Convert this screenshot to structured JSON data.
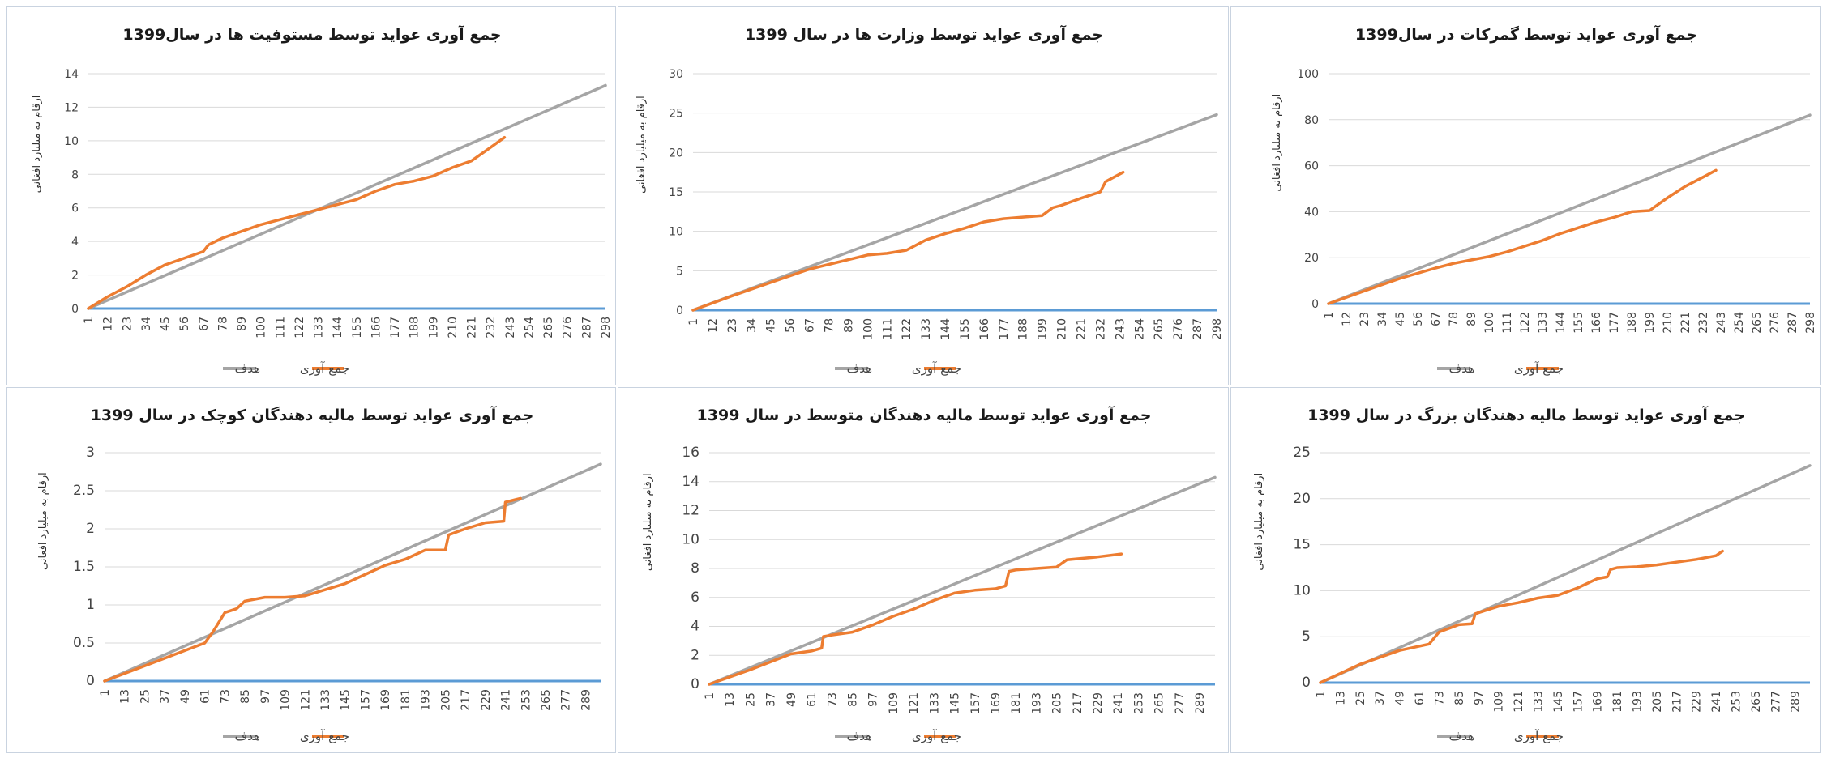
{
  "colors": {
    "target": "#a5a5a5",
    "actual": "#ed7d31",
    "baseline": "#5b9bd5",
    "grid": "#d9d9d9",
    "border": "#c9d3e0"
  },
  "legend": {
    "target_label": "هدف",
    "actual_label": "جمع آوری"
  },
  "chart_data": [
    {
      "type": "line",
      "title": "جمع آوری عواید توسط مستوفیت ها در سال1399",
      "ylabel": "ارقام به میلیارد افغانی",
      "ylim": [
        0,
        14
      ],
      "yticks": [
        "0",
        "2",
        "4",
        "6",
        "8",
        "10",
        "12",
        "14"
      ],
      "ytick_values": [
        0,
        2,
        4,
        6,
        8,
        10,
        12,
        14
      ],
      "xticks": [
        "1",
        "12",
        "23",
        "34",
        "45",
        "56",
        "67",
        "78",
        "89",
        "100",
        "111",
        "122",
        "133",
        "144",
        "155",
        "166",
        "177",
        "188",
        "199",
        "210",
        "221",
        "232",
        "243",
        "254",
        "265",
        "276",
        "287",
        "298"
      ],
      "x_range": [
        1,
        298
      ],
      "series": [
        {
          "name": "هدف",
          "x": [
            1,
            298
          ],
          "y": [
            0,
            13.3
          ]
        },
        {
          "name": "جمع آوری",
          "x": [
            1,
            12,
            23,
            34,
            45,
            56,
            67,
            70,
            78,
            89,
            100,
            111,
            122,
            133,
            144,
            155,
            166,
            177,
            188,
            199,
            210,
            221,
            232,
            240
          ],
          "y": [
            0,
            0.7,
            1.3,
            2.0,
            2.6,
            3.0,
            3.4,
            3.8,
            4.2,
            4.6,
            5.0,
            5.3,
            5.6,
            5.9,
            6.2,
            6.5,
            7.0,
            7.4,
            7.6,
            7.9,
            8.4,
            8.8,
            9.6,
            10.2
          ]
        }
      ]
    },
    {
      "type": "line",
      "title": "جمع آوری عواید توسط وزارت ها در سال 1399",
      "ylabel": "ارقام به میلیارد افغانی",
      "ylim": [
        0,
        30
      ],
      "yticks": [
        "0",
        "5",
        "10",
        "15",
        "20",
        "25",
        "30"
      ],
      "ytick_values": [
        0,
        5,
        10,
        15,
        20,
        25,
        30
      ],
      "xticks": [
        "1",
        "12",
        "23",
        "34",
        "45",
        "56",
        "67",
        "78",
        "89",
        "100",
        "111",
        "122",
        "133",
        "144",
        "155",
        "166",
        "177",
        "188",
        "199",
        "210",
        "221",
        "232",
        "243",
        "254",
        "265",
        "276",
        "287",
        "298"
      ],
      "x_range": [
        1,
        298
      ],
      "series": [
        {
          "name": "هدف",
          "x": [
            1,
            298
          ],
          "y": [
            0,
            24.8
          ]
        },
        {
          "name": "جمع آوری",
          "x": [
            1,
            23,
            45,
            67,
            78,
            89,
            100,
            111,
            122,
            133,
            144,
            155,
            166,
            177,
            188,
            199,
            205,
            210,
            221,
            232,
            235,
            245
          ],
          "y": [
            0,
            1.8,
            3.5,
            5.2,
            5.8,
            6.4,
            7.0,
            7.2,
            7.6,
            8.9,
            9.7,
            10.4,
            11.2,
            11.6,
            11.8,
            12.0,
            13.0,
            13.3,
            14.2,
            15.0,
            16.3,
            17.5
          ]
        }
      ]
    },
    {
      "type": "line",
      "title": "جمع آوری عواید توسط گمرکات در سال1399",
      "ylabel": "ارقام به میلیارد افغانی",
      "ylim": [
        0,
        100
      ],
      "yticks": [
        "0",
        "20",
        "40",
        "60",
        "80",
        "100"
      ],
      "ytick_values": [
        0,
        20,
        40,
        60,
        80,
        100
      ],
      "xticks": [
        "1",
        "12",
        "23",
        "34",
        "45",
        "56",
        "67",
        "78",
        "89",
        "100",
        "111",
        "122",
        "133",
        "144",
        "155",
        "166",
        "177",
        "188",
        "199",
        "210",
        "221",
        "232",
        "243",
        "254",
        "265",
        "276",
        "287",
        "298"
      ],
      "x_range": [
        1,
        298
      ],
      "series": [
        {
          "name": "هدف",
          "x": [
            1,
            298
          ],
          "y": [
            0,
            82
          ]
        },
        {
          "name": "جمع آوری",
          "x": [
            1,
            23,
            45,
            67,
            78,
            89,
            100,
            111,
            122,
            133,
            144,
            155,
            166,
            177,
            188,
            199,
            210,
            221,
            232,
            240
          ],
          "y": [
            0,
            5.5,
            11.0,
            15.5,
            17.5,
            19.0,
            20.5,
            22.5,
            25.0,
            27.5,
            30.5,
            33.0,
            35.5,
            37.5,
            40.0,
            40.5,
            46.0,
            51.0,
            55.0,
            58.0
          ]
        }
      ]
    },
    {
      "type": "line",
      "title": "جمع آوری عواید توسط مالیه دهندگان کوچک در سال 1399",
      "ylabel": "ارقام به میلیارد افغانی",
      "ylim": [
        0,
        3
      ],
      "yticks": [
        "0",
        "0.5",
        "1",
        "1.5",
        "2",
        "2.5",
        "3"
      ],
      "ytick_values": [
        0,
        0.5,
        1,
        1.5,
        2,
        2.5,
        3
      ],
      "xticks": [
        "1",
        "13",
        "25",
        "37",
        "49",
        "61",
        "73",
        "85",
        "97",
        "109",
        "121",
        "133",
        "145",
        "157",
        "169",
        "181",
        "193",
        "205",
        "217",
        "229",
        "241",
        "253",
        "265",
        "277",
        "289"
      ],
      "x_range": [
        1,
        298
      ],
      "series": [
        {
          "name": "هدف",
          "x": [
            1,
            298
          ],
          "y": [
            0,
            2.85
          ]
        },
        {
          "name": "جمع آوری",
          "x": [
            1,
            25,
            49,
            61,
            66,
            73,
            80,
            85,
            97,
            109,
            121,
            133,
            145,
            157,
            169,
            181,
            193,
            205,
            207,
            217,
            229,
            240,
            241,
            250
          ],
          "y": [
            0,
            0.2,
            0.4,
            0.5,
            0.65,
            0.9,
            0.95,
            1.05,
            1.1,
            1.1,
            1.12,
            1.2,
            1.28,
            1.4,
            1.52,
            1.6,
            1.72,
            1.72,
            1.92,
            2.0,
            2.08,
            2.1,
            2.35,
            2.4
          ]
        }
      ]
    },
    {
      "type": "line",
      "title": "جمع آوری عواید توسط مالیه دهندگان متوسط در سال 1399",
      "ylabel": "ارقام به میلیارد افغانی",
      "ylim": [
        0,
        16
      ],
      "yticks": [
        "0",
        "2",
        "4",
        "6",
        "8",
        "10",
        "12",
        "14",
        "16"
      ],
      "ytick_values": [
        0,
        2,
        4,
        6,
        8,
        10,
        12,
        14,
        16
      ],
      "xticks": [
        "1",
        "13",
        "25",
        "37",
        "49",
        "61",
        "73",
        "85",
        "97",
        "109",
        "121",
        "133",
        "145",
        "157",
        "169",
        "181",
        "193",
        "205",
        "217",
        "229",
        "241",
        "253",
        "265",
        "277",
        "289"
      ],
      "x_range": [
        1,
        298
      ],
      "series": [
        {
          "name": "هدف",
          "x": [
            1,
            298
          ],
          "y": [
            0,
            14.3
          ]
        },
        {
          "name": "جمع آوری",
          "x": [
            1,
            25,
            49,
            61,
            67,
            68,
            73,
            85,
            97,
            109,
            121,
            133,
            145,
            157,
            169,
            175,
            177,
            181,
            193,
            205,
            211,
            229,
            243
          ],
          "y": [
            0,
            1.0,
            2.1,
            2.3,
            2.5,
            3.3,
            3.4,
            3.6,
            4.1,
            4.7,
            5.2,
            5.8,
            6.3,
            6.5,
            6.6,
            6.8,
            7.8,
            7.9,
            8.0,
            8.1,
            8.6,
            8.8,
            9.0
          ]
        }
      ]
    },
    {
      "type": "line",
      "title": "جمع آوری عواید توسط مالیه دهندگان بزرگ در  سال 1399",
      "ylabel": "ارقام به میلیارد افغانی",
      "ylim": [
        0,
        25
      ],
      "yticks": [
        "0",
        "5",
        "10",
        "15",
        "20",
        "25"
      ],
      "ytick_values": [
        0,
        5,
        10,
        15,
        20,
        25
      ],
      "xticks": [
        "1",
        "13",
        "25",
        "37",
        "49",
        "61",
        "73",
        "85",
        "97",
        "109",
        "121",
        "133",
        "145",
        "157",
        "169",
        "181",
        "193",
        "205",
        "217",
        "229",
        "241",
        "253",
        "265",
        "277",
        "289"
      ],
      "x_range": [
        1,
        298
      ],
      "series": [
        {
          "name": "هدف",
          "x": [
            1,
            298
          ],
          "y": [
            0,
            23.6
          ]
        },
        {
          "name": "جمع آوری",
          "x": [
            1,
            25,
            49,
            67,
            73,
            85,
            93,
            95,
            109,
            121,
            133,
            145,
            157,
            169,
            175,
            177,
            181,
            193,
            205,
            217,
            229,
            241,
            245
          ],
          "y": [
            0,
            2.0,
            3.5,
            4.2,
            5.5,
            6.3,
            6.4,
            7.5,
            8.3,
            8.7,
            9.2,
            9.5,
            10.3,
            11.3,
            11.5,
            12.3,
            12.5,
            12.6,
            12.8,
            13.1,
            13.4,
            13.8,
            14.3
          ]
        }
      ]
    }
  ]
}
